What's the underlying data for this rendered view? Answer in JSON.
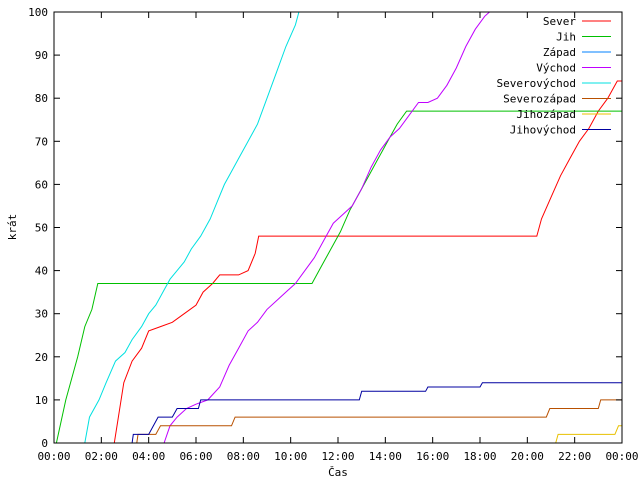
{
  "chart_data": {
    "type": "line",
    "title": "",
    "xlabel": "Čas",
    "ylabel": "krát",
    "x_unit": "hours",
    "xlim": [
      0,
      24
    ],
    "ylim": [
      0,
      100
    ],
    "x_ticks": [
      {
        "value": 0,
        "label": "00:00"
      },
      {
        "value": 2,
        "label": "02:00"
      },
      {
        "value": 4,
        "label": "04:00"
      },
      {
        "value": 6,
        "label": "06:00"
      },
      {
        "value": 8,
        "label": "08:00"
      },
      {
        "value": 10,
        "label": "10:00"
      },
      {
        "value": 12,
        "label": "12:00"
      },
      {
        "value": 14,
        "label": "14:00"
      },
      {
        "value": 16,
        "label": "16:00"
      },
      {
        "value": 18,
        "label": "18:00"
      },
      {
        "value": 20,
        "label": "20:00"
      },
      {
        "value": 22,
        "label": "22:00"
      },
      {
        "value": 24,
        "label": "00:00"
      }
    ],
    "y_ticks": [
      0,
      10,
      20,
      30,
      40,
      50,
      60,
      70,
      80,
      90,
      100
    ],
    "grid": false,
    "legend_position": "top-right",
    "series": [
      {
        "name": "Sever",
        "color": "#ff0000",
        "x": [
          0,
          2.55,
          2.95,
          3.3,
          3.7,
          4.0,
          4.5,
          5.0,
          5.5,
          6.0,
          6.3,
          6.7,
          7.0,
          7.8,
          8.2,
          8.5,
          8.65,
          20.4,
          20.6,
          21.0,
          21.4,
          21.8,
          22.2,
          22.6,
          23.0,
          23.4,
          23.8,
          24.0
        ],
        "y": [
          0,
          0,
          14,
          19,
          22,
          26,
          27,
          28,
          30,
          32,
          35,
          37,
          39,
          39,
          40,
          44,
          48,
          48,
          52,
          57,
          62,
          66,
          70,
          73,
          77,
          80,
          84,
          84
        ]
      },
      {
        "name": "Jih",
        "color": "#00c000",
        "x": [
          0,
          0.1,
          0.5,
          1.0,
          1.3,
          1.6,
          1.85,
          10.9,
          11.3,
          11.7,
          12.1,
          12.5,
          12.9,
          13.3,
          13.7,
          14.1,
          14.5,
          14.9,
          15.2,
          24.0
        ],
        "y": [
          0,
          0,
          10,
          20,
          27,
          31,
          37,
          37,
          41,
          45,
          49,
          54,
          58,
          62,
          66,
          70,
          74,
          77,
          77,
          77
        ]
      },
      {
        "name": "Západ",
        "color": "#0080ff",
        "x": [
          0,
          24
        ],
        "y": [
          0,
          0
        ]
      },
      {
        "name": "Východ",
        "color": "#c000ff",
        "x": [
          0,
          4.65,
          4.9,
          5.2,
          5.6,
          6.0,
          6.5,
          7.0,
          7.4,
          7.8,
          8.2,
          8.6,
          9.0,
          9.4,
          9.8,
          10.2,
          10.6,
          11.0,
          11.4,
          11.8,
          12.2,
          12.6,
          13.0,
          13.4,
          13.8,
          14.2,
          14.6,
          15.0,
          15.4,
          15.8,
          16.2,
          16.6,
          17.0,
          17.4,
          17.8,
          18.2,
          18.4
        ],
        "y": [
          0,
          0,
          4,
          6,
          8,
          9,
          10,
          13,
          18,
          22,
          26,
          28,
          31,
          33,
          35,
          37,
          40,
          43,
          47,
          51,
          53,
          55,
          59,
          64,
          68,
          71,
          73,
          76,
          79,
          79,
          80,
          83,
          87,
          92,
          96,
          99,
          100
        ]
      },
      {
        "name": "Severovýchod",
        "color": "#00e0e0",
        "x": [
          0,
          1.3,
          1.5,
          1.9,
          2.2,
          2.6,
          3.0,
          3.3,
          3.7,
          4.0,
          4.3,
          4.6,
          4.9,
          5.2,
          5.5,
          5.8,
          6.2,
          6.6,
          6.9,
          7.2,
          7.5,
          7.8,
          8.2,
          8.6,
          9.0,
          9.4,
          9.8,
          10.2,
          10.35
        ],
        "y": [
          0,
          0,
          6,
          10,
          14,
          19,
          21,
          24,
          27,
          30,
          32,
          35,
          38,
          40,
          42,
          45,
          48,
          52,
          56,
          60,
          63,
          66,
          70,
          74,
          80,
          86,
          92,
          97,
          100
        ]
      },
      {
        "name": "Severozápad",
        "color": "#b85000",
        "x": [
          0,
          3.5,
          3.55,
          4.3,
          4.5,
          7.5,
          7.65,
          20.8,
          20.95,
          23.0,
          23.1,
          24.0
        ],
        "y": [
          0,
          0,
          2,
          2,
          4,
          4,
          6,
          6,
          8,
          8,
          10,
          10
        ]
      },
      {
        "name": "Jihozápad",
        "color": "#e8c000",
        "x": [
          0,
          21.2,
          21.3,
          23.7,
          23.85,
          24.0
        ],
        "y": [
          0,
          0,
          2,
          2,
          4,
          4
        ]
      },
      {
        "name": "Jihovýchod",
        "color": "#0000a0",
        "x": [
          0,
          3.3,
          3.35,
          4.0,
          4.4,
          5.0,
          5.2,
          6.1,
          6.2,
          12.9,
          13.0,
          15.7,
          15.8,
          18.0,
          18.1,
          24.0
        ],
        "y": [
          0,
          0,
          2,
          2,
          6,
          6,
          8,
          8,
          10,
          10,
          12,
          12,
          13,
          13,
          14,
          14
        ]
      }
    ]
  }
}
